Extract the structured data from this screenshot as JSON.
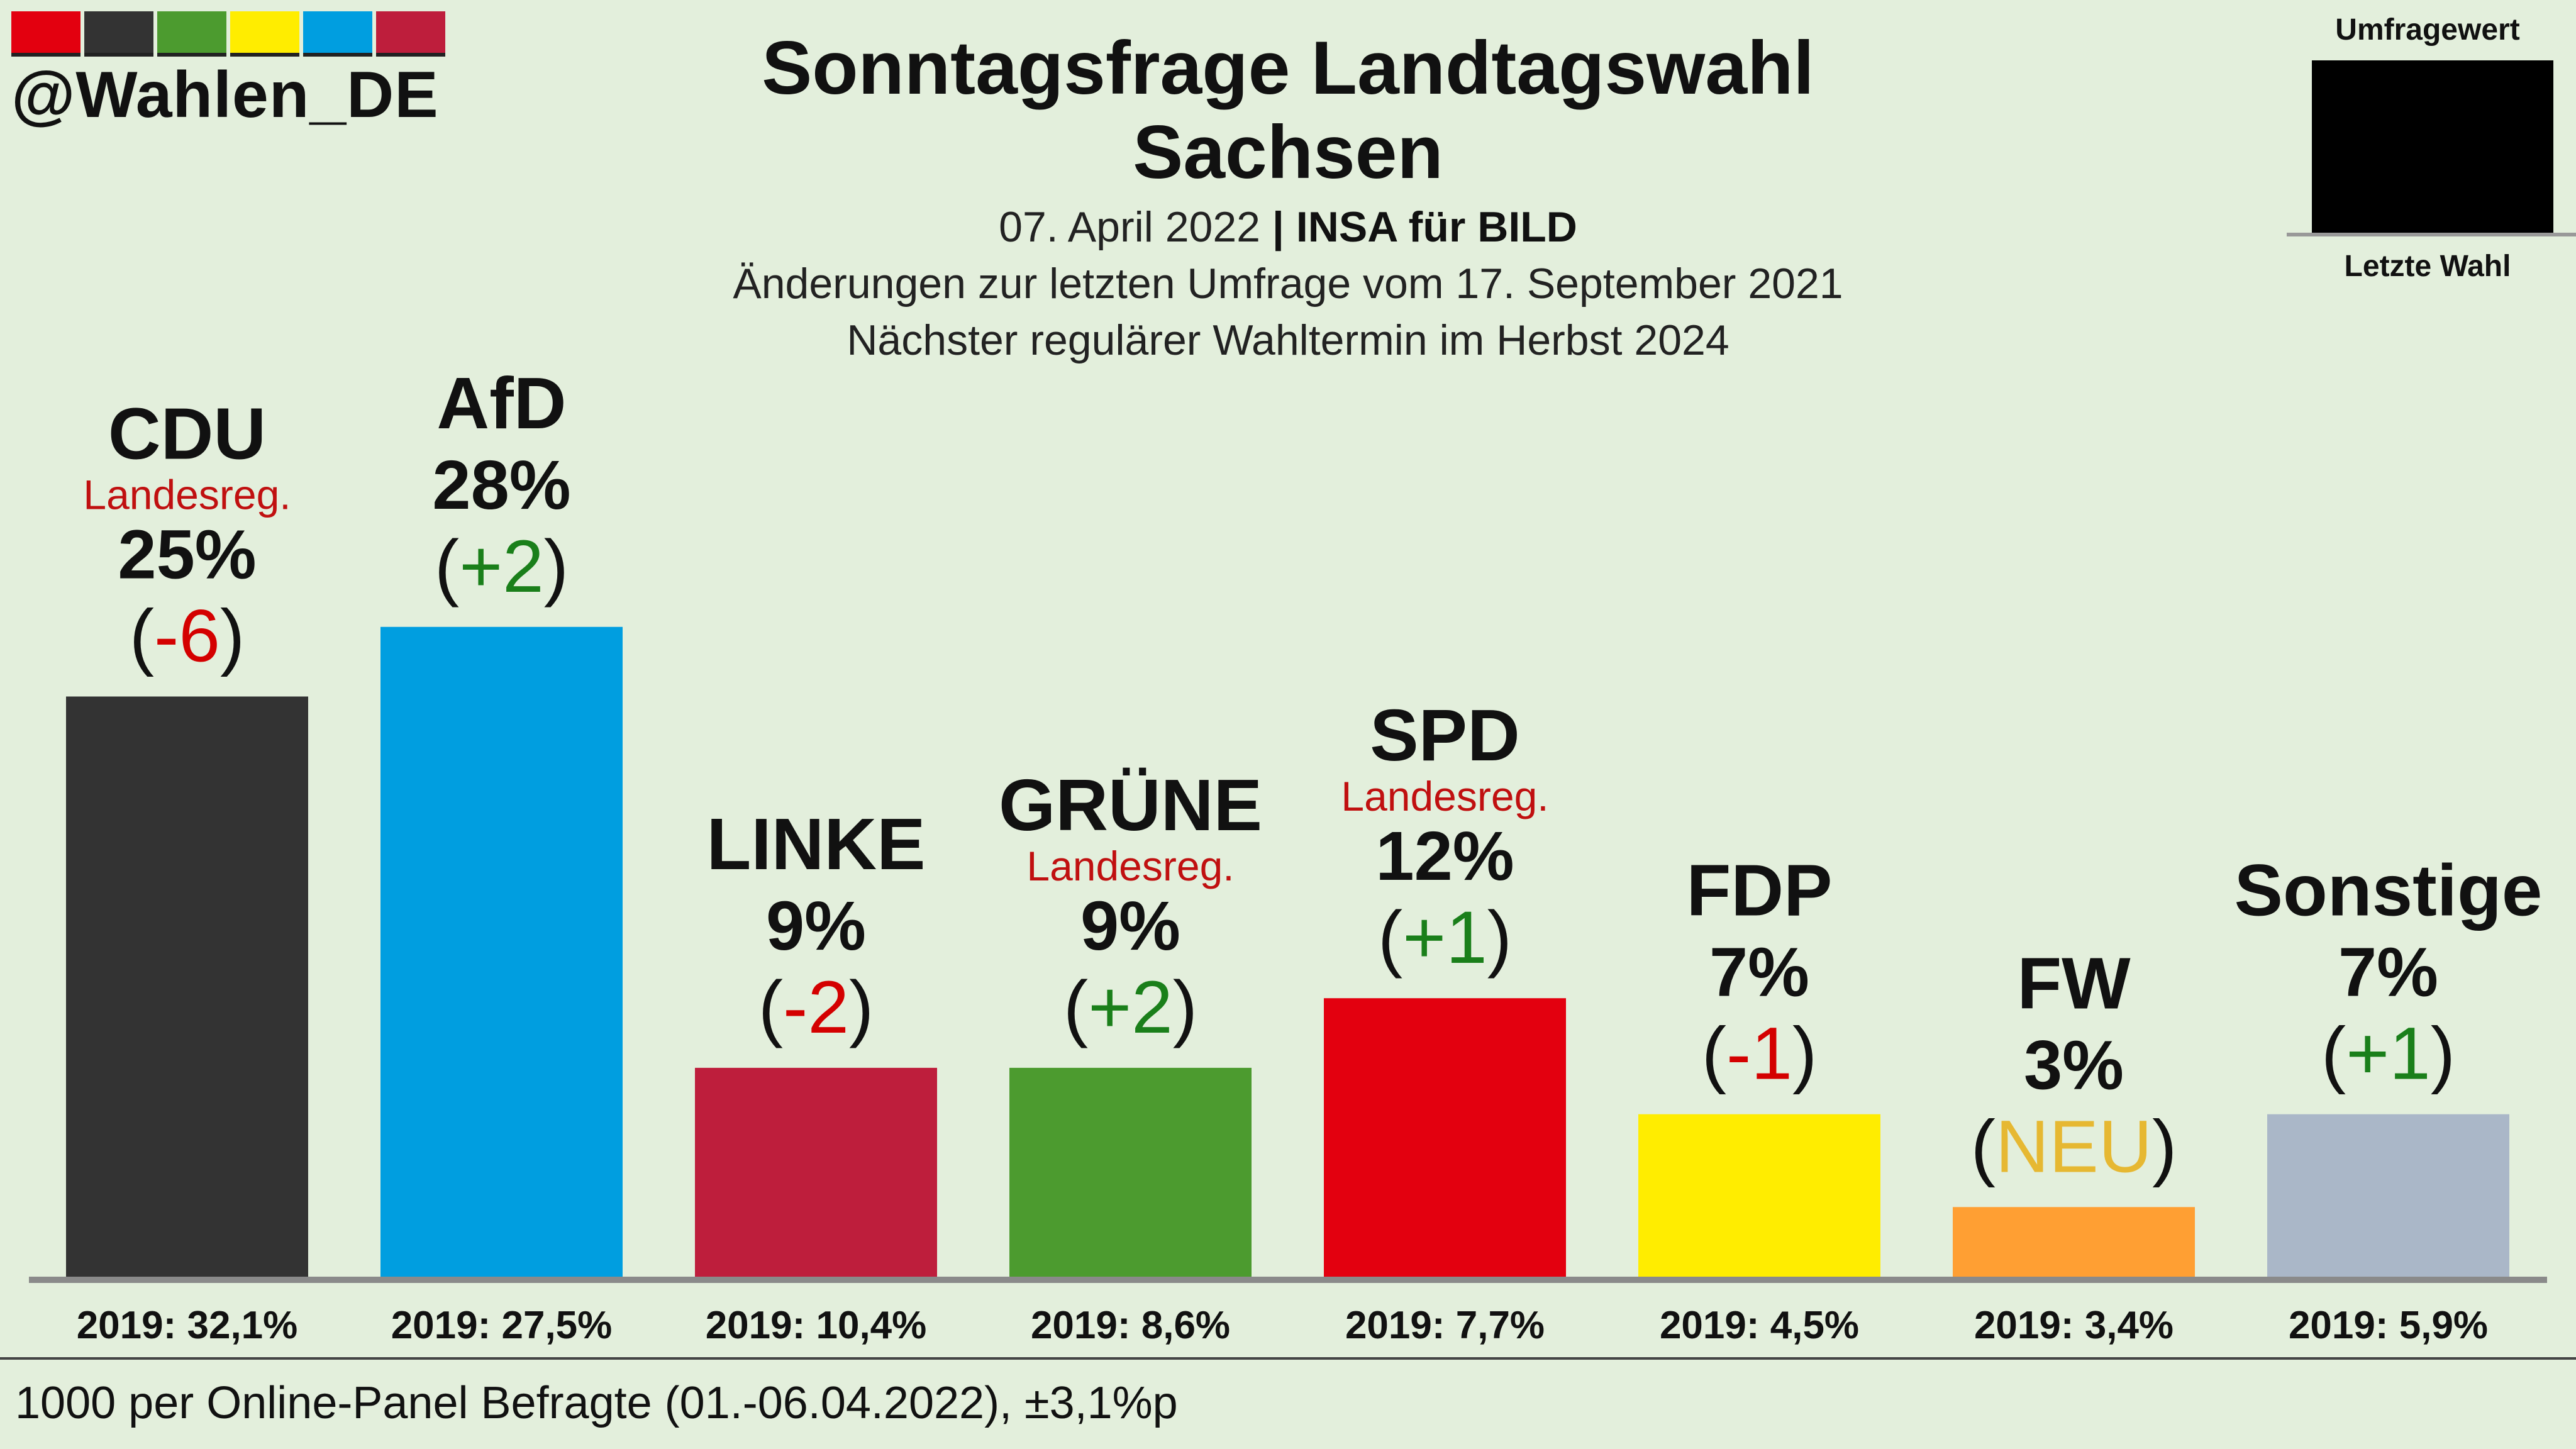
{
  "brand": {
    "handle": "@Wahlen_DE",
    "stripe_colors": [
      "#e3000f",
      "#333333",
      "#4c9b2f",
      "#ffed00",
      "#009ee0",
      "#be1e3c"
    ]
  },
  "header": {
    "title_line1": "Sonntagsfrage Landtagswahl",
    "title_line2": "Sachsen",
    "date": "07. April 2022",
    "separator": "|",
    "institute": "INSA für BILD",
    "changes_note": "Änderungen zur letzten Umfrage vom 17. September 2021",
    "next_election": "Nächster regulärer Wahltermin im Herbst 2024"
  },
  "legend": {
    "top_label": "Umfragewert",
    "bottom_label": "Letzte Wahl"
  },
  "chart_data": {
    "type": "bar",
    "value_unit": "%",
    "ylim": [
      0,
      30
    ],
    "categories": [
      "CDU",
      "AfD",
      "LINKE",
      "GRÜNE",
      "SPD",
      "FDP",
      "FW",
      "Sonstige"
    ],
    "values": [
      25,
      28,
      9,
      9,
      12,
      7,
      3,
      7
    ],
    "value_labels": [
      "25%",
      "28%",
      "9%",
      "9%",
      "12%",
      "7%",
      "3%",
      "7%"
    ],
    "change_labels": [
      "-6",
      "+2",
      "-2",
      "+2",
      "+1",
      "-1",
      "NEU",
      "+1"
    ],
    "government_label": "Landesreg.",
    "government": [
      true,
      false,
      false,
      true,
      true,
      false,
      false,
      false
    ],
    "last_election_labels": [
      "2019: 32,1%",
      "2019: 27,5%",
      "2019: 10,4%",
      "2019: 8,6%",
      "2019: 7,7%",
      "2019: 4,5%",
      "2019: 3,4%",
      "2019: 5,9%"
    ],
    "colors": [
      "#333333",
      "#009ee0",
      "#be1e3c",
      "#4c9b2f",
      "#e3000f",
      "#ffed00",
      "#ff9f33",
      "#aab7c8"
    ],
    "change_colors": {
      "up": "#1a7f1a",
      "down": "#d40000",
      "new": "#e6b832"
    },
    "legend": "top-right"
  },
  "footer": {
    "sample_note": "1000 per Online-Panel Befragte (01.-06.04.2022), ±3,1%p"
  }
}
